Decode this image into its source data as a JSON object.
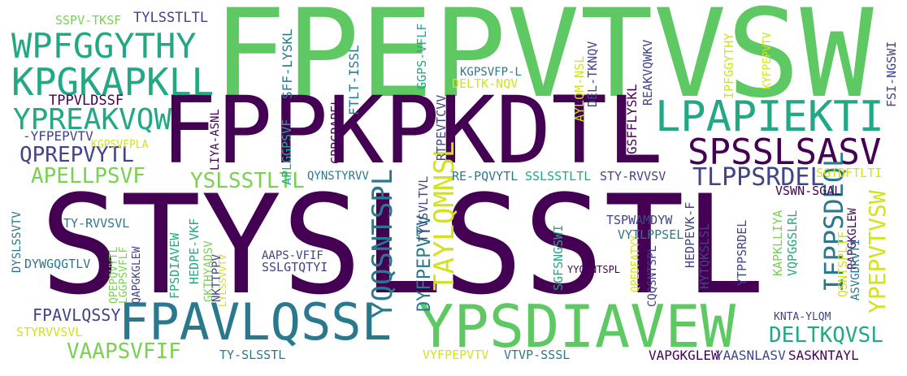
{
  "palette": {
    "dark_purple": "#440154",
    "indigo": "#414487",
    "blue": "#2a788e",
    "teal": "#22a884",
    "green": "#5ec962",
    "light_green": "#7ad151",
    "yellow": "#d2e21b"
  },
  "words": [
    {
      "text": "FPEPVTVSW",
      "color": "#5ec962",
      "weight": 1.0
    },
    {
      "text": "STYSLSSTL",
      "color": "#440154",
      "weight": 0.98
    },
    {
      "text": "FPPKPKDTL",
      "color": "#440154",
      "weight": 0.72
    },
    {
      "text": "YPSDIAVEW",
      "color": "#5ec962",
      "weight": 0.45
    },
    {
      "text": "FPAVLQSSL",
      "color": "#2a788e",
      "weight": 0.4
    },
    {
      "text": "LPAPIEKTI",
      "color": "#22a884",
      "weight": 0.36
    },
    {
      "text": "SPSSLSASV",
      "color": "#440154",
      "weight": 0.3
    },
    {
      "text": "KPGKAPKLL",
      "color": "#22a884",
      "weight": 0.3
    },
    {
      "text": "WPFGGYTHY",
      "color": "#22a884",
      "weight": 0.28
    },
    {
      "text": "YPREAKVQW",
      "color": "#22a884",
      "weight": 0.24
    },
    {
      "text": "YQQSNTSPL",
      "color": "#2a788e",
      "weight": 0.22
    },
    {
      "text": "TAYLQMNSL",
      "color": "#d2e21b",
      "weight": 0.22
    },
    {
      "text": "IFPPSDEQL",
      "color": "#2a788e",
      "weight": 0.22
    },
    {
      "text": "YPEPVTVSW",
      "color": "#d2e21b",
      "weight": 0.2
    },
    {
      "text": "TLPPSRDEL",
      "color": "#414487",
      "weight": 0.2
    },
    {
      "text": "QPREPVYTL",
      "color": "#414487",
      "weight": 0.19
    },
    {
      "text": "APELLPSVF",
      "color": "#7ad151",
      "weight": 0.19
    },
    {
      "text": "YSLSSTLTL",
      "color": "#7ad151",
      "weight": 0.19
    },
    {
      "text": "VAAPSVFIF",
      "color": "#7ad151",
      "weight": 0.19
    },
    {
      "text": "DELTKQVSL",
      "color": "#22a884",
      "weight": 0.19
    },
    {
      "text": "FPAVLQSSY",
      "color": "#414487",
      "weight": 0.15
    },
    {
      "text": "DYFPEPVTV",
      "color": "#2a788e",
      "weight": 0.15
    },
    {
      "text": "SPSSLSASV",
      "color": "#440154",
      "weight": 0.0
    },
    {
      "text": "TPPVLDSSF",
      "color": "#440154",
      "weight": 0.12
    },
    {
      "text": "TYLSSTLTL",
      "color": "#414487",
      "weight": 0.11
    },
    {
      "text": "SSPV-TKSF",
      "color": "#7ad151",
      "weight": 0.1
    },
    {
      "text": "-YFPEPVTV",
      "color": "#414487",
      "weight": 0.1
    },
    {
      "text": "KGPSVFPLA",
      "color": "#d2e21b",
      "weight": 0.08
    },
    {
      "text": "SFF-LYSKL",
      "color": "#2a788e",
      "weight": 0.1
    },
    {
      "text": "APLGGPSVF",
      "color": "#22a884",
      "weight": 0.09
    },
    {
      "text": "LIYA-ASNL",
      "color": "#440154",
      "weight": 0.08
    },
    {
      "text": "CPPCPAPEL",
      "color": "#440154",
      "weight": 0.09
    },
    {
      "text": "FTLT-ISSL",
      "color": "#2a788e",
      "weight": 0.1
    },
    {
      "text": "GGPS-VFLF",
      "color": "#22a884",
      "weight": 0.09
    },
    {
      "text": "KGPSVFP-L",
      "color": "#2a788e",
      "weight": 0.08
    },
    {
      "text": "DELTK-NQV",
      "color": "#d2e21b",
      "weight": 0.09
    },
    {
      "text": "AYLQM-NSL",
      "color": "#d2e21b",
      "weight": 0.09
    },
    {
      "text": "DEL-TKNQV",
      "color": "#414487",
      "weight": 0.09
    },
    {
      "text": "REAKVQWKV",
      "color": "#414487",
      "weight": 0.09
    },
    {
      "text": "GSFFLYSKL",
      "color": "#440154",
      "weight": 0.1
    },
    {
      "text": "IPFGGYTHY",
      "color": "#d2e21b",
      "weight": 0.09
    },
    {
      "text": "KYFPEPVTV",
      "color": "#d2e21b",
      "weight": 0.08
    },
    {
      "text": "FSI-NGSWI",
      "color": "#414487",
      "weight": 0.09
    },
    {
      "text": "QYNSTYRVV",
      "color": "#2a788e",
      "weight": 0.09
    },
    {
      "text": "RTPEVTCVV",
      "color": "#414487",
      "weight": 0.1
    },
    {
      "text": "TYVSVLTVL",
      "color": "#414487",
      "weight": 0.09
    },
    {
      "text": "RE-PQVYTL",
      "color": "#2a788e",
      "weight": 0.09
    },
    {
      "text": "SSLSSTLTL",
      "color": "#22a884",
      "weight": 0.09
    },
    {
      "text": "STY-RVVSV",
      "color": "#414487",
      "weight": 0.09
    },
    {
      "text": "SGTDFTLTI",
      "color": "#d2e21b",
      "weight": 0.09
    },
    {
      "text": "VSWN-SGAL",
      "color": "#440154",
      "weight": 0.09
    },
    {
      "text": "DYSLSSVTV",
      "color": "#2a788e",
      "weight": 0.09
    },
    {
      "text": "TY-RVVSVL",
      "color": "#2a788e",
      "weight": 0.09
    },
    {
      "text": "DYWGQGTLV",
      "color": "#2a788e",
      "weight": 0.09
    },
    {
      "text": "QPEPQVYTL",
      "color": "#7ad151",
      "weight": 0.08
    },
    {
      "text": "LGGPSVFLF",
      "color": "#7ad151",
      "weight": 0.08
    },
    {
      "text": "QAPGKGLEW",
      "color": "#414487",
      "weight": 0.08
    },
    {
      "text": "FPSDIAVEW",
      "color": "#22a884",
      "weight": 0.09
    },
    {
      "text": "HEDPE-VKF",
      "color": "#22a884",
      "weight": 0.09
    },
    {
      "text": "GKTHYADSV",
      "color": "#7ad151",
      "weight": 0.08
    },
    {
      "text": "NKTTPPV",
      "color": "#414487",
      "weight": 0.08
    },
    {
      "text": "LYLSSVVTV",
      "color": "#d2e21b",
      "weight": 0.07
    },
    {
      "text": "AAPS-VFIF",
      "color": "#414487",
      "weight": 0.09
    },
    {
      "text": "SSLGTQTYI",
      "color": "#414487",
      "weight": 0.1
    },
    {
      "text": "SGFSNGSWI",
      "color": "#22a884",
      "weight": 0.09
    },
    {
      "text": "YYQSNTSPL",
      "color": "#440154",
      "weight": 0.08
    },
    {
      "text": "QPEDFATYY",
      "color": "#d2e21b",
      "weight": 0.08
    },
    {
      "text": "CQQSNTSPL",
      "color": "#414487",
      "weight": 0.08
    },
    {
      "text": "TSPWAMDYW",
      "color": "#414487",
      "weight": 0.09
    },
    {
      "text": "VYTLPPSEL",
      "color": "#2a788e",
      "weight": 0.09
    },
    {
      "text": "HEDPEVK-F",
      "color": "#414487",
      "weight": 0.09
    },
    {
      "text": "HYTQKSLSL",
      "color": "#414487",
      "weight": 0.09
    },
    {
      "text": "YTPPSRDEL",
      "color": "#414487",
      "weight": 0.09
    },
    {
      "text": "KAPKLLIYA",
      "color": "#7ad151",
      "weight": 0.09
    },
    {
      "text": "VQPGGSLRL",
      "color": "#22a884",
      "weight": 0.09
    },
    {
      "text": "RAPGKGLEW",
      "color": "#440154",
      "weight": 0.08
    },
    {
      "text": "QSNTSPLTF",
      "color": "#d2e21b",
      "weight": 0.09
    },
    {
      "text": "ASVGDRVTI",
      "color": "#2a788e",
      "weight": 0.08
    },
    {
      "text": "KNTA-YLQM",
      "color": "#414487",
      "weight": 0.07
    },
    {
      "text": "STYRVVSVL",
      "color": "#d2e21b",
      "weight": 0.09
    },
    {
      "text": "TY-SLSSTL",
      "color": "#2a788e",
      "weight": 0.09
    },
    {
      "text": "VYFPEPVTV",
      "color": "#d2e21b",
      "weight": 0.09
    },
    {
      "text": "VTVP-SSSL",
      "color": "#2a788e",
      "weight": 0.09
    },
    {
      "text": "VAPGKGLEW",
      "color": "#440154",
      "weight": 0.1
    },
    {
      "text": "YAASNLASV",
      "color": "#414487",
      "weight": 0.1
    },
    {
      "text": "SASKNTAYL",
      "color": "#440154",
      "weight": 0.1
    }
  ]
}
